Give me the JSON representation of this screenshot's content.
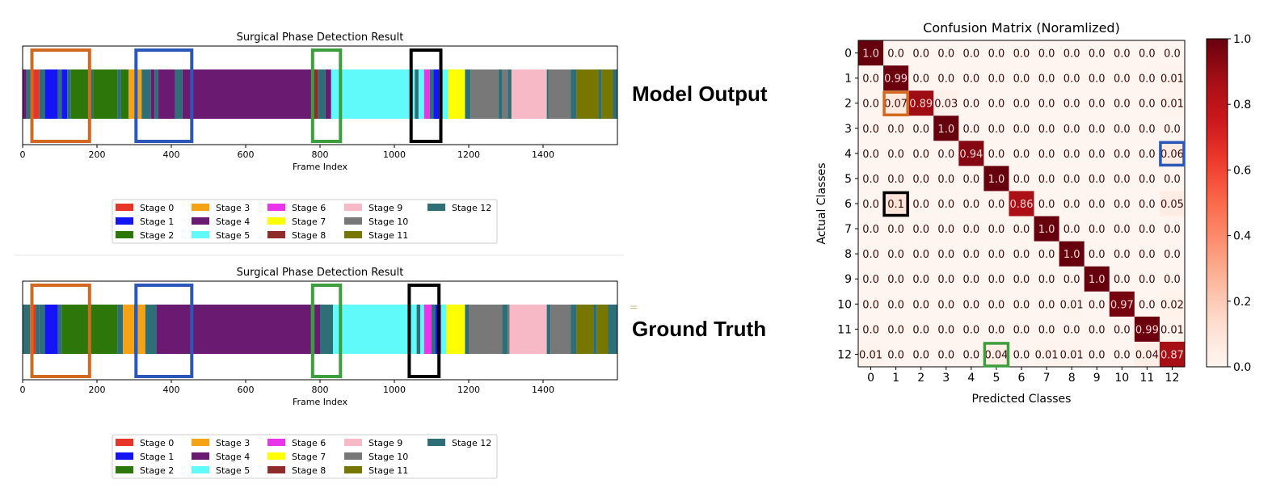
{
  "labels": {
    "model_output": "Model Output",
    "ground_truth": "Ground Truth",
    "stray_mark": "="
  },
  "stage_colors": {
    "0": "#e8352a",
    "1": "#1414f5",
    "2": "#2d760a",
    "3": "#f5a314",
    "4": "#6b1a72",
    "5": "#61fafa",
    "6": "#ea34ea",
    "7": "#ffff00",
    "8": "#8e2c2c",
    "9": "#f6b9c5",
    "10": "#787878",
    "11": "#777700",
    "12": "#2e6e77"
  },
  "highlight_colors": {
    "orange": "#d2691e",
    "blue": "#2b58b8",
    "green": "#3c9e3c",
    "black": "#000000"
  },
  "chart_data": [
    {
      "type": "bar",
      "subtype": "phase-timeline",
      "title": "Surgical Phase Detection Result",
      "xlabel": "Frame Index",
      "xlim": [
        0,
        1600
      ],
      "xticks": [
        0,
        200,
        400,
        600,
        800,
        1000,
        1200,
        1400
      ],
      "segments": [
        {
          "start": 0,
          "end": 10,
          "stage": 4
        },
        {
          "start": 10,
          "end": 25,
          "stage": 12
        },
        {
          "start": 25,
          "end": 45,
          "stage": 0
        },
        {
          "start": 45,
          "end": 60,
          "stage": 12
        },
        {
          "start": 60,
          "end": 95,
          "stage": 1
        },
        {
          "start": 95,
          "end": 105,
          "stage": 12
        },
        {
          "start": 105,
          "end": 120,
          "stage": 1
        },
        {
          "start": 120,
          "end": 130,
          "stage": 12
        },
        {
          "start": 130,
          "end": 180,
          "stage": 2
        },
        {
          "start": 180,
          "end": 190,
          "stage": 12
        },
        {
          "start": 190,
          "end": 255,
          "stage": 2
        },
        {
          "start": 255,
          "end": 265,
          "stage": 12
        },
        {
          "start": 265,
          "end": 285,
          "stage": 2
        },
        {
          "start": 285,
          "end": 320,
          "stage": 3
        },
        {
          "start": 320,
          "end": 345,
          "stage": 12
        },
        {
          "start": 345,
          "end": 355,
          "stage": 4
        },
        {
          "start": 355,
          "end": 365,
          "stage": 12
        },
        {
          "start": 365,
          "end": 410,
          "stage": 4
        },
        {
          "start": 410,
          "end": 430,
          "stage": 12
        },
        {
          "start": 430,
          "end": 780,
          "stage": 4
        },
        {
          "start": 780,
          "end": 795,
          "stage": 8
        },
        {
          "start": 795,
          "end": 815,
          "stage": 12
        },
        {
          "start": 815,
          "end": 830,
          "stage": 4
        },
        {
          "start": 830,
          "end": 1055,
          "stage": 5
        },
        {
          "start": 1055,
          "end": 1065,
          "stage": 12
        },
        {
          "start": 1065,
          "end": 1080,
          "stage": 5
        },
        {
          "start": 1080,
          "end": 1095,
          "stage": 6
        },
        {
          "start": 1095,
          "end": 1105,
          "stage": 12
        },
        {
          "start": 1105,
          "end": 1120,
          "stage": 1
        },
        {
          "start": 1120,
          "end": 1130,
          "stage": 12
        },
        {
          "start": 1130,
          "end": 1145,
          "stage": 5
        },
        {
          "start": 1145,
          "end": 1190,
          "stage": 7
        },
        {
          "start": 1190,
          "end": 1205,
          "stage": 12
        },
        {
          "start": 1205,
          "end": 1280,
          "stage": 10
        },
        {
          "start": 1280,
          "end": 1290,
          "stage": 12
        },
        {
          "start": 1290,
          "end": 1305,
          "stage": 10
        },
        {
          "start": 1305,
          "end": 1315,
          "stage": 12
        },
        {
          "start": 1315,
          "end": 1410,
          "stage": 9
        },
        {
          "start": 1410,
          "end": 1415,
          "stage": 12
        },
        {
          "start": 1415,
          "end": 1475,
          "stage": 10
        },
        {
          "start": 1475,
          "end": 1490,
          "stage": 12
        },
        {
          "start": 1490,
          "end": 1550,
          "stage": 11
        },
        {
          "start": 1550,
          "end": 1558,
          "stage": 12
        },
        {
          "start": 1558,
          "end": 1588,
          "stage": 11
        },
        {
          "start": 1588,
          "end": 1600,
          "stage": 12
        }
      ],
      "highlights": [
        {
          "start": 25,
          "end": 180,
          "color": "orange"
        },
        {
          "start": 305,
          "end": 455,
          "color": "blue"
        },
        {
          "start": 780,
          "end": 855,
          "color": "green"
        },
        {
          "start": 1045,
          "end": 1125,
          "color": "black"
        }
      ],
      "legend": [
        "Stage 0",
        "Stage 1",
        "Stage 2",
        "Stage 3",
        "Stage 4",
        "Stage 5",
        "Stage 6",
        "Stage 7",
        "Stage 8",
        "Stage 9",
        "Stage 10",
        "Stage 11",
        "Stage 12"
      ]
    },
    {
      "type": "bar",
      "subtype": "phase-timeline",
      "title": "Surgical Phase Detection Result",
      "xlabel": "Frame Index",
      "xlim": [
        0,
        1600
      ],
      "xticks": [
        0,
        200,
        400,
        600,
        800,
        1000,
        1200,
        1400
      ],
      "segments": [
        {
          "start": 0,
          "end": 20,
          "stage": 12
        },
        {
          "start": 20,
          "end": 35,
          "stage": 0
        },
        {
          "start": 35,
          "end": 45,
          "stage": 12
        },
        {
          "start": 45,
          "end": 60,
          "stage": 12
        },
        {
          "start": 60,
          "end": 95,
          "stage": 1
        },
        {
          "start": 95,
          "end": 105,
          "stage": 12
        },
        {
          "start": 105,
          "end": 255,
          "stage": 2
        },
        {
          "start": 255,
          "end": 270,
          "stage": 12
        },
        {
          "start": 270,
          "end": 300,
          "stage": 3
        },
        {
          "start": 300,
          "end": 310,
          "stage": 12
        },
        {
          "start": 310,
          "end": 330,
          "stage": 3
        },
        {
          "start": 330,
          "end": 360,
          "stage": 12
        },
        {
          "start": 360,
          "end": 775,
          "stage": 4
        },
        {
          "start": 775,
          "end": 785,
          "stage": 12
        },
        {
          "start": 785,
          "end": 800,
          "stage": 4
        },
        {
          "start": 800,
          "end": 835,
          "stage": 12
        },
        {
          "start": 835,
          "end": 1060,
          "stage": 5
        },
        {
          "start": 1060,
          "end": 1070,
          "stage": 12
        },
        {
          "start": 1070,
          "end": 1080,
          "stage": 5
        },
        {
          "start": 1080,
          "end": 1100,
          "stage": 6
        },
        {
          "start": 1100,
          "end": 1110,
          "stage": 12
        },
        {
          "start": 1110,
          "end": 1125,
          "stage": 1
        },
        {
          "start": 1125,
          "end": 1140,
          "stage": 5
        },
        {
          "start": 1140,
          "end": 1190,
          "stage": 7
        },
        {
          "start": 1190,
          "end": 1200,
          "stage": 12
        },
        {
          "start": 1200,
          "end": 1290,
          "stage": 10
        },
        {
          "start": 1290,
          "end": 1305,
          "stage": 12
        },
        {
          "start": 1305,
          "end": 1310,
          "stage": 10
        },
        {
          "start": 1310,
          "end": 1410,
          "stage": 9
        },
        {
          "start": 1410,
          "end": 1420,
          "stage": 12
        },
        {
          "start": 1420,
          "end": 1475,
          "stage": 10
        },
        {
          "start": 1475,
          "end": 1490,
          "stage": 12
        },
        {
          "start": 1490,
          "end": 1535,
          "stage": 11
        },
        {
          "start": 1535,
          "end": 1545,
          "stage": 12
        },
        {
          "start": 1545,
          "end": 1575,
          "stage": 11
        },
        {
          "start": 1575,
          "end": 1600,
          "stage": 12
        }
      ],
      "highlights": [
        {
          "start": 25,
          "end": 180,
          "color": "orange"
        },
        {
          "start": 305,
          "end": 455,
          "color": "blue"
        },
        {
          "start": 780,
          "end": 855,
          "color": "green"
        },
        {
          "start": 1040,
          "end": 1120,
          "color": "black"
        }
      ],
      "legend": [
        "Stage 0",
        "Stage 1",
        "Stage 2",
        "Stage 3",
        "Stage 4",
        "Stage 5",
        "Stage 6",
        "Stage 7",
        "Stage 8",
        "Stage 9",
        "Stage 10",
        "Stage 11",
        "Stage 12"
      ]
    },
    {
      "type": "heatmap",
      "title": "Confusion Matrix (Noramlized)",
      "xlabel": "Predicted Classes",
      "ylabel": "Actual Classes",
      "x_ticks": [
        "0",
        "1",
        "2",
        "3",
        "4",
        "5",
        "6",
        "7",
        "8",
        "9",
        "10",
        "11",
        "12"
      ],
      "y_ticks": [
        "0",
        "1",
        "2",
        "3",
        "4",
        "5",
        "6",
        "7",
        "8",
        "9",
        "10",
        "11",
        "12"
      ],
      "colorbar_ticks": [
        "0.0",
        "0.2",
        "0.4",
        "0.6",
        "0.8",
        "1.0"
      ],
      "vmin": 0,
      "vmax": 1,
      "colormap": "Reds",
      "cells": [
        [
          "1.0",
          "0.0",
          "0.0",
          "0.0",
          "0.0",
          "0.0",
          "0.0",
          "0.0",
          "0.0",
          "0.0",
          "0.0",
          "0.0",
          "0.0"
        ],
        [
          "0.0",
          "0.99",
          "0.0",
          "0.0",
          "0.0",
          "0.0",
          "0.0",
          "0.0",
          "0.0",
          "0.0",
          "0.0",
          "0.0",
          "0.01"
        ],
        [
          "0.0",
          "0.07",
          "0.89",
          "0.03",
          "0.0",
          "0.0",
          "0.0",
          "0.0",
          "0.0",
          "0.0",
          "0.0",
          "0.0",
          "0.01"
        ],
        [
          "0.0",
          "0.0",
          "0.0",
          "1.0",
          "0.0",
          "0.0",
          "0.0",
          "0.0",
          "0.0",
          "0.0",
          "0.0",
          "0.0",
          "0.0"
        ],
        [
          "0.0",
          "0.0",
          "0.0",
          "0.0",
          "0.94",
          "0.0",
          "0.0",
          "0.0",
          "0.0",
          "0.0",
          "0.0",
          "0.0",
          "0.06"
        ],
        [
          "0.0",
          "0.0",
          "0.0",
          "0.0",
          "0.0",
          "1.0",
          "0.0",
          "0.0",
          "0.0",
          "0.0",
          "0.0",
          "0.0",
          "0.0"
        ],
        [
          "0.0",
          "0.1",
          "0.0",
          "0.0",
          "0.0",
          "0.0",
          "0.86",
          "0.0",
          "0.0",
          "0.0",
          "0.0",
          "0.0",
          "0.05"
        ],
        [
          "0.0",
          "0.0",
          "0.0",
          "0.0",
          "0.0",
          "0.0",
          "0.0",
          "1.0",
          "0.0",
          "0.0",
          "0.0",
          "0.0",
          "0.0"
        ],
        [
          "0.0",
          "0.0",
          "0.0",
          "0.0",
          "0.0",
          "0.0",
          "0.0",
          "0.0",
          "1.0",
          "0.0",
          "0.0",
          "0.0",
          "0.0"
        ],
        [
          "0.0",
          "0.0",
          "0.0",
          "0.0",
          "0.0",
          "0.0",
          "0.0",
          "0.0",
          "0.0",
          "1.0",
          "0.0",
          "0.0",
          "0.0"
        ],
        [
          "0.0",
          "0.0",
          "0.0",
          "0.0",
          "0.0",
          "0.0",
          "0.0",
          "0.0",
          "0.01",
          "0.0",
          "0.97",
          "0.0",
          "0.02"
        ],
        [
          "0.0",
          "0.0",
          "0.0",
          "0.0",
          "0.0",
          "0.0",
          "0.0",
          "0.0",
          "0.0",
          "0.0",
          "0.0",
          "0.99",
          "0.01"
        ],
        [
          "0.01",
          "0.0",
          "0.0",
          "0.0",
          "0.0",
          "0.04",
          "0.0",
          "0.01",
          "0.01",
          "0.0",
          "0.0",
          "0.04",
          "0.87"
        ]
      ],
      "highlights": [
        {
          "row": 2,
          "col": 1,
          "color": "orange"
        },
        {
          "row": 4,
          "col": 12,
          "color": "blue"
        },
        {
          "row": 6,
          "col": 1,
          "color": "black"
        },
        {
          "row": 12,
          "col": 5,
          "color": "green"
        }
      ]
    }
  ]
}
